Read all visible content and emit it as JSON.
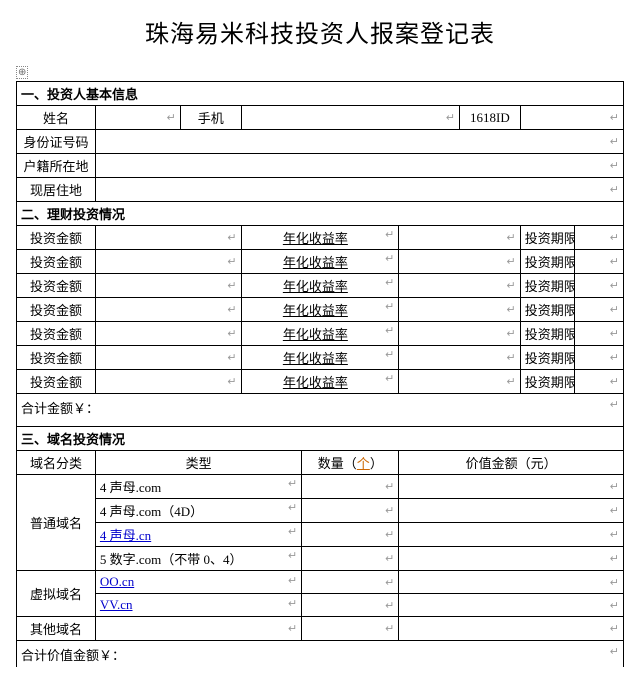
{
  "title": "珠海易米科技投资人报案登记表",
  "anchor_glyph": "⊕",
  "mark": "↵",
  "section1": "一、投资人基本信息",
  "basic": {
    "name_label": "姓名",
    "phone_label": "手机",
    "id1618_label": "1618ID",
    "idcard_label": "身份证号码",
    "hukou_label": "户籍所在地",
    "addr_label": "现居住地"
  },
  "section2": "二、理财投资情况",
  "invest": {
    "amount_label": "投资金额",
    "rate_label": "年化收益率",
    "term_label": "投资期限",
    "rows": 7,
    "total_label": "合计金额￥："
  },
  "section3": "三、域名投资情况",
  "domain": {
    "cat_label": "域名分类",
    "type_label": "类型",
    "qty_label_pre": "数量（",
    "qty_label_unit": "个",
    "qty_label_post": "）",
    "value_label": "价值金额（元）",
    "common_label": "普通域名",
    "common_rows": [
      "4 声母.com",
      "4 声母.com（4D）",
      "4 声母.cn",
      "5 数字.com（不带 0、4）"
    ],
    "virtual_label": "虚拟域名",
    "virtual_rows": [
      "OO.cn",
      "VV.cn"
    ],
    "other_label": "其他域名",
    "total_label": "合计价值金额￥："
  }
}
